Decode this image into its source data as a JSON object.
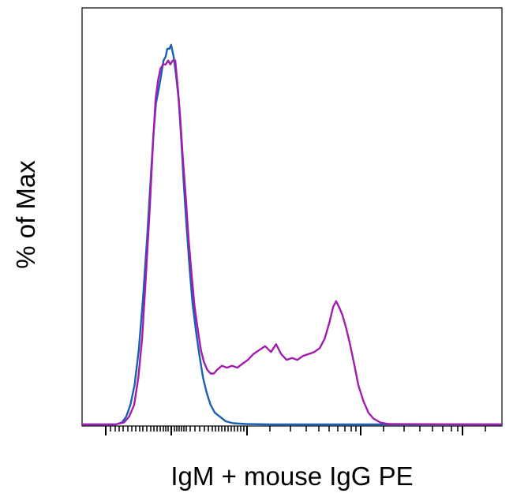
{
  "chart_data": {
    "type": "line",
    "title": "",
    "xlabel": "IgM + mouse IgG PE",
    "ylabel": "% of Max",
    "xscale": "biexponential",
    "x_tick_labels": [],
    "y_tick_labels": [],
    "grid": false,
    "legend": "none",
    "ylim": [
      0,
      100
    ],
    "series": [
      {
        "color": "#1a5fb4",
        "points": [
          [
            0.0,
            0
          ],
          [
            0.08,
            0
          ],
          [
            0.095,
            0.5
          ],
          [
            0.105,
            2
          ],
          [
            0.115,
            5
          ],
          [
            0.125,
            10
          ],
          [
            0.135,
            19
          ],
          [
            0.145,
            32
          ],
          [
            0.155,
            48
          ],
          [
            0.163,
            62
          ],
          [
            0.17,
            74
          ],
          [
            0.176,
            82
          ],
          [
            0.183,
            86
          ],
          [
            0.188,
            89
          ],
          [
            0.194,
            93
          ],
          [
            0.199,
            94
          ],
          [
            0.203,
            96
          ],
          [
            0.208,
            96
          ],
          [
            0.212,
            97
          ],
          [
            0.218,
            94
          ],
          [
            0.224,
            89
          ],
          [
            0.23,
            83
          ],
          [
            0.236,
            73
          ],
          [
            0.242,
            62
          ],
          [
            0.248,
            52
          ],
          [
            0.256,
            40
          ],
          [
            0.263,
            31
          ],
          [
            0.271,
            24
          ],
          [
            0.279,
            18
          ],
          [
            0.288,
            12
          ],
          [
            0.297,
            8
          ],
          [
            0.306,
            5
          ],
          [
            0.316,
            3
          ],
          [
            0.328,
            2
          ],
          [
            0.342,
            0.8
          ],
          [
            0.36,
            0.3
          ],
          [
            0.39,
            0.1
          ],
          [
            0.45,
            0
          ],
          [
            1.0,
            0
          ]
        ]
      },
      {
        "color": "#a21caf",
        "points": [
          [
            0.0,
            0
          ],
          [
            0.08,
            0
          ],
          [
            0.1,
            0.5
          ],
          [
            0.112,
            2
          ],
          [
            0.124,
            5
          ],
          [
            0.134,
            12
          ],
          [
            0.143,
            22
          ],
          [
            0.152,
            38
          ],
          [
            0.161,
            55
          ],
          [
            0.169,
            72
          ],
          [
            0.175,
            83
          ],
          [
            0.181,
            88
          ],
          [
            0.187,
            91
          ],
          [
            0.193,
            92
          ],
          [
            0.199,
            92
          ],
          [
            0.205,
            93
          ],
          [
            0.21,
            92
          ],
          [
            0.216,
            93
          ],
          [
            0.222,
            93
          ],
          [
            0.228,
            86
          ],
          [
            0.234,
            78
          ],
          [
            0.24,
            68
          ],
          [
            0.247,
            58
          ],
          [
            0.254,
            47
          ],
          [
            0.261,
            38
          ],
          [
            0.268,
            30
          ],
          [
            0.276,
            24
          ],
          [
            0.283,
            19
          ],
          [
            0.29,
            16
          ],
          [
            0.298,
            14
          ],
          [
            0.306,
            13
          ],
          [
            0.314,
            13
          ],
          [
            0.322,
            14
          ],
          [
            0.333,
            15
          ],
          [
            0.345,
            14.5
          ],
          [
            0.357,
            15
          ],
          [
            0.37,
            14.5
          ],
          [
            0.382,
            15.5
          ],
          [
            0.395,
            16.5
          ],
          [
            0.408,
            18
          ],
          [
            0.422,
            19
          ],
          [
            0.436,
            20
          ],
          [
            0.45,
            18.5
          ],
          [
            0.462,
            20.5
          ],
          [
            0.474,
            18
          ],
          [
            0.487,
            16.5
          ],
          [
            0.5,
            17
          ],
          [
            0.513,
            16.5
          ],
          [
            0.526,
            17.5
          ],
          [
            0.54,
            18
          ],
          [
            0.553,
            18.5
          ],
          [
            0.566,
            19.5
          ],
          [
            0.578,
            22
          ],
          [
            0.589,
            26
          ],
          [
            0.598,
            30
          ],
          [
            0.605,
            31.5
          ],
          [
            0.612,
            30
          ],
          [
            0.62,
            28
          ],
          [
            0.628,
            25
          ],
          [
            0.637,
            21
          ],
          [
            0.647,
            16
          ],
          [
            0.658,
            10
          ],
          [
            0.67,
            6
          ],
          [
            0.682,
            3
          ],
          [
            0.694,
            1.5
          ],
          [
            0.71,
            0.5
          ],
          [
            0.73,
            0.1
          ],
          [
            1.0,
            0
          ]
        ]
      }
    ]
  }
}
